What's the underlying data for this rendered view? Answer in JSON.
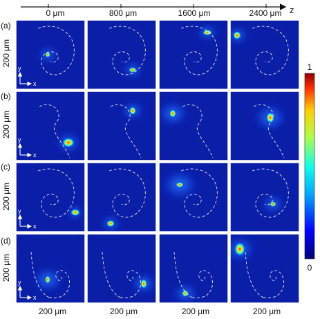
{
  "axis_label_z": "z",
  "columns": [
    "0 μm",
    "800 μm",
    "1600 μm",
    "2400 μm"
  ],
  "rows": [
    {
      "label": "(a)",
      "scale": "200 μm"
    },
    {
      "label": "(b)",
      "scale": "200 μm"
    },
    {
      "label": "(c)",
      "scale": "200 μm"
    },
    {
      "label": "(d)",
      "scale": "200 μm"
    }
  ],
  "bottom_scales": [
    "200 μm",
    "200 μm",
    "200 μm",
    "200 μm"
  ],
  "axes_x": "x",
  "axes_y": "y",
  "colorbar": {
    "max": "1",
    "min": "0"
  },
  "colors": {
    "panel_bg": "#0a1ea8",
    "grid_line": "#ffffff",
    "guide": "#ffffff"
  }
}
